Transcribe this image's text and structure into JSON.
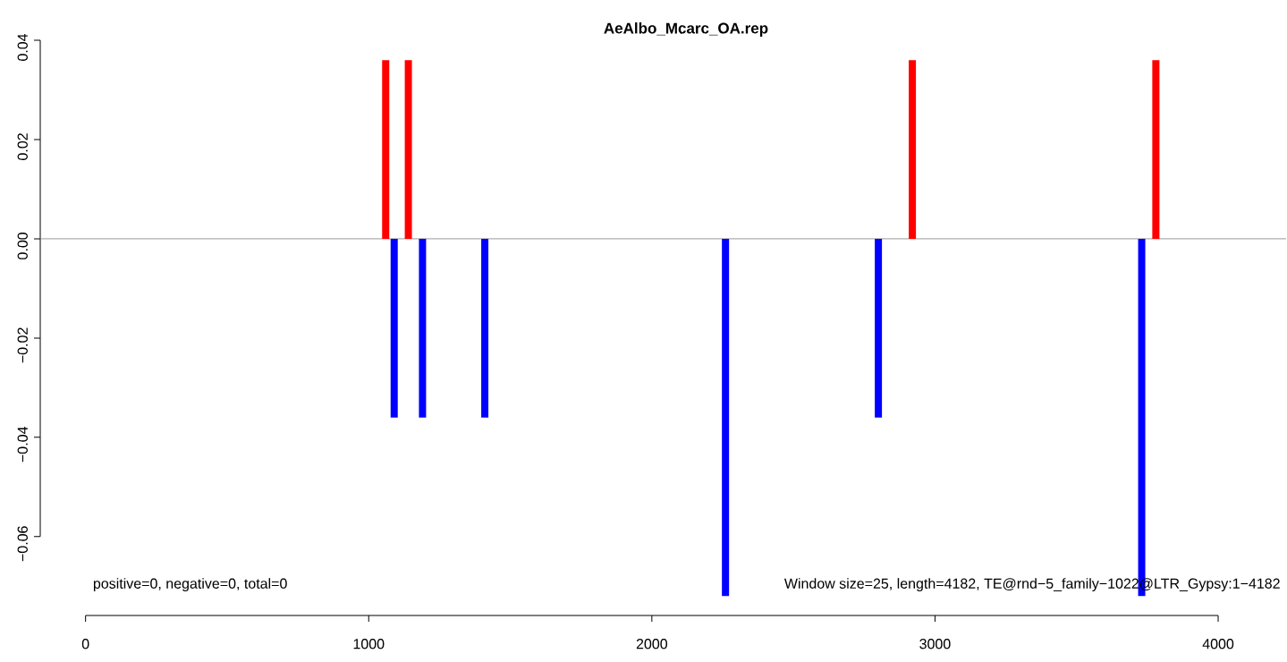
{
  "chart_data": {
    "type": "bar",
    "title": "AeAlbo_Mcarc_OA.rep",
    "series": [
      {
        "color": "#ff0000",
        "x": [
          1060,
          1140,
          2920,
          3780
        ],
        "values": [
          0.036,
          0.036,
          0.036,
          0.036
        ]
      },
      {
        "color": "#0000ff",
        "x": [
          1090,
          1190,
          1410,
          2260,
          2800,
          3730
        ],
        "values": [
          -0.036,
          -0.036,
          -0.036,
          -0.072,
          -0.036,
          -0.072
        ]
      }
    ],
    "xlim": [
      -160,
      4240
    ],
    "ylim": [
      -0.0759,
      0.04
    ],
    "xticks": [
      0,
      1000,
      2000,
      3000,
      4000
    ],
    "yticks": [
      {
        "value": -0.06,
        "label": "−0.06"
      },
      {
        "value": -0.04,
        "label": "−0.04"
      },
      {
        "value": -0.02,
        "label": "−0.02"
      },
      {
        "value": 0,
        "label": "0.00"
      },
      {
        "value": 0.02,
        "label": "0.02"
      },
      {
        "value": 0.04,
        "label": "0.04"
      }
    ],
    "ref_lines": [
      {
        "axis": "y",
        "value": 0,
        "color": "#808080"
      }
    ],
    "annotations": [
      "positive=0, negative=0, total=0",
      "Window size=25, length=4182, TE@rnd−5_family−1022@LTR_Gypsy:1−4182"
    ]
  }
}
